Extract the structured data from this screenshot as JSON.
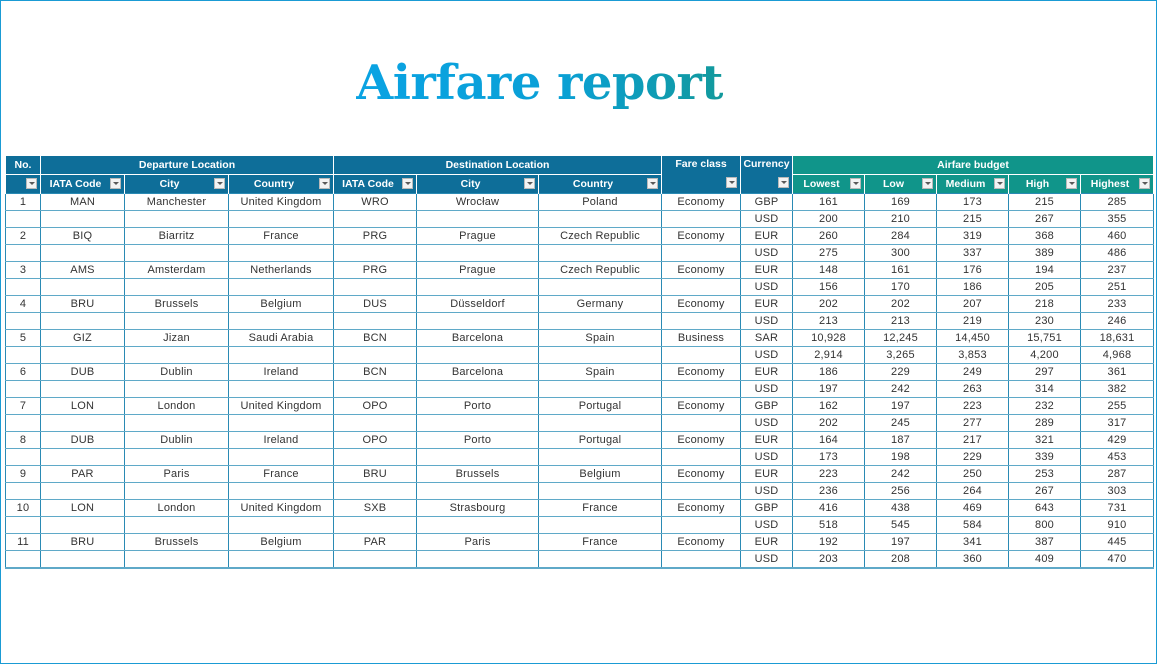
{
  "title": "Airfare report",
  "colors": {
    "frame_border": "#1a9bd4",
    "header_blue": "#0e6e99",
    "header_teal": "#10958a",
    "title_start": "#0aa3e3",
    "title_end": "#12999c",
    "grid_line": "#2a8ab4"
  },
  "headers": {
    "no": "No.",
    "departure_group": "Departure Location",
    "destination_group": "Destination Location",
    "fare_class": "Fare class",
    "currency": "Currency",
    "budget_group": "Airfare budget",
    "dep_iata": "IATA Code",
    "dep_city": "City",
    "dep_country": "Country",
    "dest_iata": "IATA Code",
    "dest_city": "City",
    "dest_country": "Country",
    "lowest": "Lowest",
    "low": "Low",
    "medium": "Medium",
    "high": "High",
    "highest": "Highest"
  },
  "rows": [
    {
      "no": "1",
      "dep_iata": "MAN",
      "dep_city": "Manchester",
      "dep_country": "United Kingdom",
      "dest_iata": "WRO",
      "dest_city": "Wrocław",
      "dest_country": "Poland",
      "fare_class": "Economy",
      "fares": [
        {
          "currency": "GBP",
          "lowest": "161",
          "low": "169",
          "medium": "173",
          "high": "215",
          "highest": "285"
        },
        {
          "currency": "USD",
          "lowest": "200",
          "low": "210",
          "medium": "215",
          "high": "267",
          "highest": "355"
        }
      ]
    },
    {
      "no": "2",
      "dep_iata": "BIQ",
      "dep_city": "Biarritz",
      "dep_country": "France",
      "dest_iata": "PRG",
      "dest_city": "Prague",
      "dest_country": "Czech Republic",
      "fare_class": "Economy",
      "fares": [
        {
          "currency": "EUR",
          "lowest": "260",
          "low": "284",
          "medium": "319",
          "high": "368",
          "highest": "460"
        },
        {
          "currency": "USD",
          "lowest": "275",
          "low": "300",
          "medium": "337",
          "high": "389",
          "highest": "486"
        }
      ]
    },
    {
      "no": "3",
      "dep_iata": "AMS",
      "dep_city": "Amsterdam",
      "dep_country": "Netherlands",
      "dest_iata": "PRG",
      "dest_city": "Prague",
      "dest_country": "Czech Republic",
      "fare_class": "Economy",
      "fares": [
        {
          "currency": "EUR",
          "lowest": "148",
          "low": "161",
          "medium": "176",
          "high": "194",
          "highest": "237"
        },
        {
          "currency": "USD",
          "lowest": "156",
          "low": "170",
          "medium": "186",
          "high": "205",
          "highest": "251"
        }
      ]
    },
    {
      "no": "4",
      "dep_iata": "BRU",
      "dep_city": "Brussels",
      "dep_country": "Belgium",
      "dest_iata": "DUS",
      "dest_city": "Düsseldorf",
      "dest_country": "Germany",
      "fare_class": "Economy",
      "fares": [
        {
          "currency": "EUR",
          "lowest": "202",
          "low": "202",
          "medium": "207",
          "high": "218",
          "highest": "233"
        },
        {
          "currency": "USD",
          "lowest": "213",
          "low": "213",
          "medium": "219",
          "high": "230",
          "highest": "246"
        }
      ]
    },
    {
      "no": "5",
      "dep_iata": "GIZ",
      "dep_city": "Jizan",
      "dep_country": "Saudi Arabia",
      "dest_iata": "BCN",
      "dest_city": "Barcelona",
      "dest_country": "Spain",
      "fare_class": "Business",
      "fares": [
        {
          "currency": "SAR",
          "lowest": "10,928",
          "low": "12,245",
          "medium": "14,450",
          "high": "15,751",
          "highest": "18,631"
        },
        {
          "currency": "USD",
          "lowest": "2,914",
          "low": "3,265",
          "medium": "3,853",
          "high": "4,200",
          "highest": "4,968"
        }
      ]
    },
    {
      "no": "6",
      "dep_iata": "DUB",
      "dep_city": "Dublin",
      "dep_country": "Ireland",
      "dest_iata": "BCN",
      "dest_city": "Barcelona",
      "dest_country": "Spain",
      "fare_class": "Economy",
      "fares": [
        {
          "currency": "EUR",
          "lowest": "186",
          "low": "229",
          "medium": "249",
          "high": "297",
          "highest": "361"
        },
        {
          "currency": "USD",
          "lowest": "197",
          "low": "242",
          "medium": "263",
          "high": "314",
          "highest": "382"
        }
      ]
    },
    {
      "no": "7",
      "dep_iata": "LON",
      "dep_city": "London",
      "dep_country": "United Kingdom",
      "dest_iata": "OPO",
      "dest_city": "Porto",
      "dest_country": "Portugal",
      "fare_class": "Economy",
      "fares": [
        {
          "currency": "GBP",
          "lowest": "162",
          "low": "197",
          "medium": "223",
          "high": "232",
          "highest": "255"
        },
        {
          "currency": "USD",
          "lowest": "202",
          "low": "245",
          "medium": "277",
          "high": "289",
          "highest": "317"
        }
      ]
    },
    {
      "no": "8",
      "dep_iata": "DUB",
      "dep_city": "Dublin",
      "dep_country": "Ireland",
      "dest_iata": "OPO",
      "dest_city": "Porto",
      "dest_country": "Portugal",
      "fare_class": "Economy",
      "fares": [
        {
          "currency": "EUR",
          "lowest": "164",
          "low": "187",
          "medium": "217",
          "high": "321",
          "highest": "429"
        },
        {
          "currency": "USD",
          "lowest": "173",
          "low": "198",
          "medium": "229",
          "high": "339",
          "highest": "453"
        }
      ]
    },
    {
      "no": "9",
      "dep_iata": "PAR",
      "dep_city": "Paris",
      "dep_country": "France",
      "dest_iata": "BRU",
      "dest_city": "Brussels",
      "dest_country": "Belgium",
      "fare_class": "Economy",
      "fares": [
        {
          "currency": "EUR",
          "lowest": "223",
          "low": "242",
          "medium": "250",
          "high": "253",
          "highest": "287"
        },
        {
          "currency": "USD",
          "lowest": "236",
          "low": "256",
          "medium": "264",
          "high": "267",
          "highest": "303"
        }
      ]
    },
    {
      "no": "10",
      "dep_iata": "LON",
      "dep_city": "London",
      "dep_country": "United Kingdom",
      "dest_iata": "SXB",
      "dest_city": "Strasbourg",
      "dest_country": "France",
      "fare_class": "Economy",
      "fares": [
        {
          "currency": "GBP",
          "lowest": "416",
          "low": "438",
          "medium": "469",
          "high": "643",
          "highest": "731"
        },
        {
          "currency": "USD",
          "lowest": "518",
          "low": "545",
          "medium": "584",
          "high": "800",
          "highest": "910"
        }
      ]
    },
    {
      "no": "11",
      "dep_iata": "BRU",
      "dep_city": "Brussels",
      "dep_country": "Belgium",
      "dest_iata": "PAR",
      "dest_city": "Paris",
      "dest_country": "France",
      "fare_class": "Economy",
      "fares": [
        {
          "currency": "EUR",
          "lowest": "192",
          "low": "197",
          "medium": "341",
          "high": "387",
          "highest": "445"
        },
        {
          "currency": "USD",
          "lowest": "203",
          "low": "208",
          "medium": "360",
          "high": "409",
          "highest": "470"
        }
      ]
    }
  ]
}
